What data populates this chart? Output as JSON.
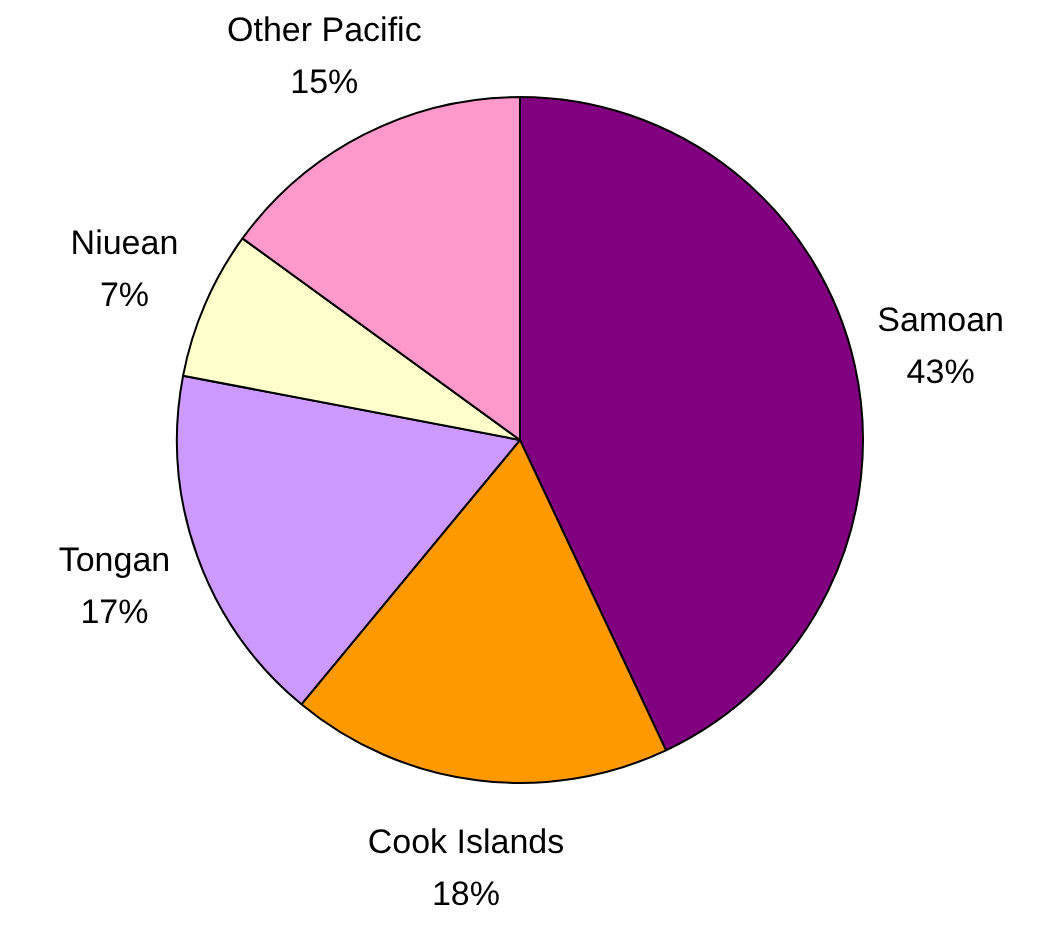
{
  "chart_data": {
    "type": "pie",
    "categories": [
      "Samoan",
      "Cook Islands",
      "Tongan",
      "Niuean",
      "Other Pacific"
    ],
    "values": [
      43,
      18,
      17,
      7,
      15
    ],
    "value_labels": [
      "43%",
      "18%",
      "17%",
      "7%",
      "15%"
    ],
    "colors": [
      "#800080",
      "#ff9900",
      "#cc99ff",
      "#ffffcc",
      "#ff99cc"
    ],
    "legend": false
  }
}
